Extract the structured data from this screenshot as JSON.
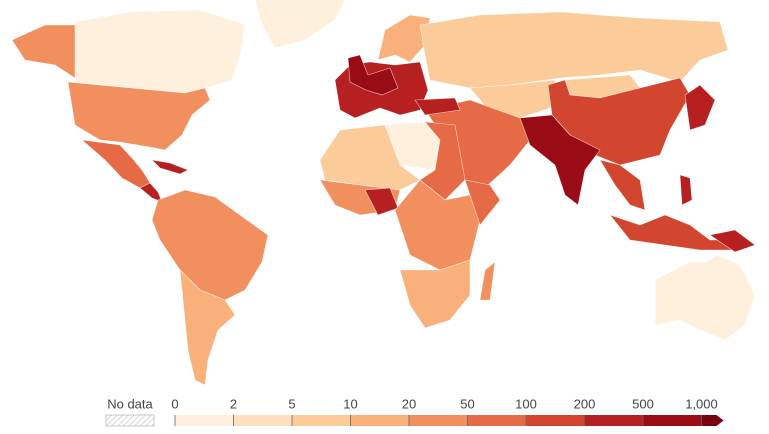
{
  "legend": {
    "no_data_label": "No data",
    "ticks": [
      0,
      2,
      5,
      10,
      20,
      50,
      100,
      200,
      500,
      {
        "value": 1000,
        "label": "1,000"
      }
    ],
    "colors": [
      "#fef0dd",
      "#fde0bd",
      "#fbcb9a",
      "#f9b07b",
      "#f28f5f",
      "#e66a45",
      "#d2462f",
      "#b72020",
      "#9a0c15",
      "#7a0010"
    ]
  }
}
